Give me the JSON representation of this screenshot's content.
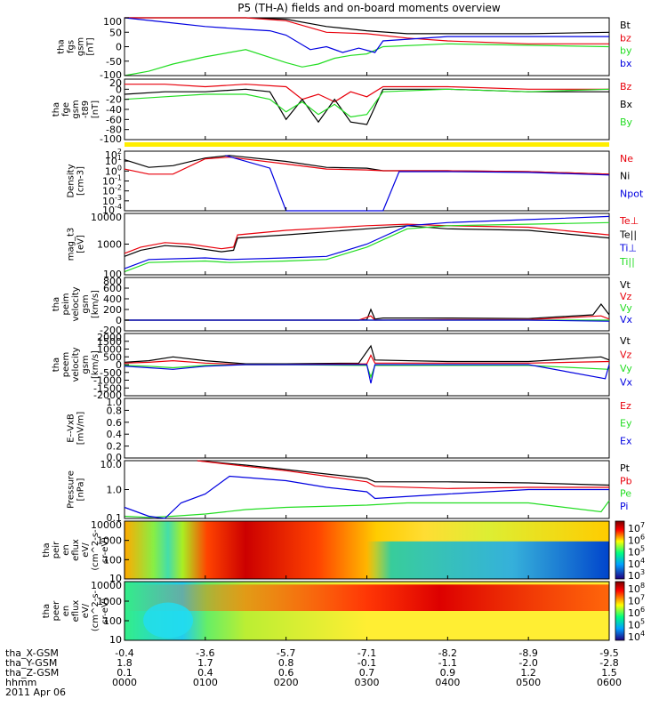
{
  "title": "P5 (TH-A) fields and on-board moments overview",
  "colors": {
    "black": "#000000",
    "red": "#e8000b",
    "green": "#22dd22",
    "blue": "#0000e0",
    "yellow": "#ffee00"
  },
  "chart_data": [
    {
      "type": "line",
      "name": "fgs",
      "ylabel": [
        "tha",
        "fgs",
        "gsm",
        "[nT]"
      ],
      "yticks": [
        "100",
        "50",
        "0",
        "-50",
        "-100"
      ],
      "legend": [
        "Bt",
        "bz",
        "by",
        "bx"
      ],
      "legend_colors": [
        "black",
        "red",
        "green",
        "blue"
      ],
      "ylim": [
        -100,
        100
      ],
      "series": [
        {
          "name": "Bt",
          "color": "black",
          "x": [
            0,
            1,
            1.5,
            2,
            2.5,
            3,
            3.5,
            4,
            5,
            6
          ],
          "y": [
            100,
            100,
            100,
            95,
            70,
            55,
            45,
            45,
            45,
            50
          ]
        },
        {
          "name": "bz",
          "color": "red",
          "x": [
            0,
            1,
            1.5,
            2,
            2.5,
            3,
            3.5,
            4,
            5,
            6
          ],
          "y": [
            100,
            100,
            100,
            90,
            50,
            45,
            30,
            20,
            10,
            10
          ]
        },
        {
          "name": "by",
          "color": "green",
          "x": [
            0,
            0.3,
            0.6,
            1,
            1.5,
            2,
            2.2,
            2.4,
            2.6,
            2.8,
            3,
            3.2,
            4,
            5,
            6
          ],
          "y": [
            -100,
            -85,
            -60,
            -35,
            -10,
            -55,
            -70,
            -60,
            -40,
            -30,
            -25,
            0,
            10,
            5,
            0
          ]
        },
        {
          "name": "bx",
          "color": "blue",
          "x": [
            0,
            0.5,
            1,
            1.5,
            1.8,
            2,
            2.3,
            2.5,
            2.7,
            2.9,
            3.1,
            3.2,
            4,
            5,
            6
          ],
          "y": [
            100,
            85,
            70,
            60,
            55,
            40,
            -10,
            0,
            -20,
            -5,
            -20,
            20,
            35,
            35,
            35
          ]
        }
      ]
    },
    {
      "type": "line",
      "name": "fge",
      "ylabel": [
        "tha",
        "fge",
        "gsm",
        "-t89",
        "[nT]"
      ],
      "yticks": [
        "20",
        "0",
        "-20",
        "-40",
        "-60",
        "-80",
        "-100"
      ],
      "legend": [
        "Bz",
        "Bx",
        "By"
      ],
      "legend_colors": [
        "red",
        "black",
        "green"
      ],
      "ylim": [
        -100,
        20
      ],
      "series": [
        {
          "name": "Bz",
          "color": "red",
          "x": [
            0,
            0.5,
            1,
            1.5,
            2,
            2.2,
            2.4,
            2.6,
            2.8,
            3,
            3.2,
            4,
            5,
            6
          ],
          "y": [
            10,
            10,
            5,
            10,
            5,
            -20,
            -10,
            -25,
            -5,
            -15,
            5,
            5,
            0,
            0
          ]
        },
        {
          "name": "Bx",
          "color": "black",
          "x": [
            0,
            0.5,
            1,
            1.5,
            1.8,
            2,
            2.2,
            2.4,
            2.6,
            2.8,
            3,
            3.2,
            4,
            5,
            6
          ],
          "y": [
            -10,
            -5,
            -5,
            0,
            -5,
            -60,
            -20,
            -65,
            -20,
            -65,
            -70,
            0,
            0,
            -5,
            -5
          ]
        },
        {
          "name": "By",
          "color": "green",
          "x": [
            0,
            0.5,
            1,
            1.5,
            1.8,
            2,
            2.2,
            2.4,
            2.6,
            2.8,
            3,
            3.2,
            4,
            5,
            6
          ],
          "y": [
            -20,
            -15,
            -10,
            -10,
            -20,
            -45,
            -25,
            -50,
            -30,
            -55,
            -50,
            -5,
            0,
            -5,
            0
          ]
        }
      ]
    },
    {
      "type": "bar",
      "name": "flag",
      "values": [
        1
      ]
    },
    {
      "type": "line",
      "name": "density",
      "log": true,
      "ylabel": [
        "Density",
        "[cm-3]"
      ],
      "yticks": [
        "10^2",
        "10^1",
        "10^0",
        "10^-1",
        "10^-2",
        "10^-3",
        "10^-4"
      ],
      "legend": [
        "Ne",
        "Ni",
        "Npot"
      ],
      "legend_colors": [
        "red",
        "black",
        "blue"
      ],
      "ylim": [
        -4.5,
        2.5
      ],
      "series": [
        {
          "name": "Ni",
          "color": "black",
          "x": [
            0,
            0.3,
            0.6,
            1,
            1.3,
            2,
            2.5,
            3,
            3.2,
            4,
            5,
            6
          ],
          "y": [
            1.5,
            0.6,
            0.8,
            1.7,
            2.0,
            1.3,
            0.6,
            0.5,
            0.2,
            0.2,
            0.1,
            -0.2
          ]
        },
        {
          "name": "Ne",
          "color": "red",
          "x": [
            0,
            0.3,
            0.6,
            1,
            1.3,
            2,
            2.5,
            3,
            3.2,
            4,
            5,
            6
          ],
          "y": [
            0.4,
            -0.2,
            -0.2,
            1.6,
            1.8,
            1.0,
            0.4,
            0.3,
            0.2,
            0.2,
            0.1,
            -0.2
          ]
        },
        {
          "name": "Npot",
          "color": "blue",
          "x": [
            1.25,
            1.8,
            2.0,
            3.2,
            3.4,
            4,
            5,
            6
          ],
          "y": [
            2.0,
            0.5,
            -4.5,
            -4.5,
            0.1,
            0.1,
            0.0,
            -0.3
          ]
        }
      ]
    },
    {
      "type": "line",
      "name": "temperature",
      "log": true,
      "ylabel": [
        "mag_t3",
        "[eV]"
      ],
      "yticks": [
        "10000",
        "1000",
        "100"
      ],
      "legend": [
        "Te⊥",
        "Te||",
        "Ti⊥",
        "Ti||"
      ],
      "legend_colors": [
        "red",
        "black",
        "blue",
        "green"
      ],
      "ylim": [
        2,
        4
      ],
      "series": [
        {
          "name": "Te⊥",
          "color": "red",
          "x": [
            0,
            0.2,
            0.5,
            0.8,
            1.2,
            1.35,
            1.4,
            2,
            3,
            3.5,
            4,
            5,
            6
          ],
          "y": [
            2.7,
            2.9,
            3.05,
            3.0,
            2.85,
            2.9,
            3.3,
            3.45,
            3.6,
            3.65,
            3.6,
            3.55,
            3.3
          ]
        },
        {
          "name": "Te||",
          "color": "black",
          "x": [
            0,
            0.2,
            0.5,
            0.8,
            1.2,
            1.35,
            1.4,
            2,
            3,
            3.5,
            4,
            5,
            6
          ],
          "y": [
            2.6,
            2.8,
            2.95,
            2.9,
            2.75,
            2.8,
            3.2,
            3.3,
            3.5,
            3.6,
            3.5,
            3.45,
            3.2
          ]
        },
        {
          "name": "Ti⊥",
          "color": "blue",
          "x": [
            0,
            0.3,
            1,
            1.3,
            2,
            2.5,
            3,
            3.5,
            4,
            5,
            6
          ],
          "y": [
            2.2,
            2.5,
            2.55,
            2.5,
            2.55,
            2.6,
            3.0,
            3.6,
            3.7,
            3.8,
            3.9
          ]
        },
        {
          "name": "Ti||",
          "color": "green",
          "x": [
            0,
            0.3,
            1,
            1.3,
            2,
            2.5,
            3,
            3.5,
            4,
            5,
            6
          ],
          "y": [
            2.1,
            2.4,
            2.45,
            2.4,
            2.45,
            2.5,
            2.9,
            3.5,
            3.6,
            3.65,
            3.7
          ]
        }
      ]
    },
    {
      "type": "line",
      "name": "peim velocity",
      "ylabel": [
        "tha",
        "peim",
        "velocity",
        "gsm",
        "[km/s]"
      ],
      "yticks": [
        "800",
        "600",
        "400",
        "200",
        "0",
        "-200"
      ],
      "legend": [
        "Vt",
        "Vz",
        "Vy",
        "Vx"
      ],
      "legend_colors": [
        "black",
        "red",
        "green",
        "blue"
      ],
      "ylim": [
        -200,
        800
      ],
      "series": [
        {
          "name": "Vt",
          "color": "black",
          "x": [
            0,
            2.9,
            3.0,
            3.05,
            3.1,
            3.2,
            4,
            5,
            5.8,
            5.9,
            6
          ],
          "y": [
            0,
            0,
            10,
            200,
            20,
            40,
            40,
            30,
            100,
            300,
            100
          ]
        },
        {
          "name": "Vz",
          "color": "red",
          "x": [
            0,
            2.9,
            3.05,
            3.1,
            4,
            5,
            5.9,
            6
          ],
          "y": [
            0,
            0,
            80,
            0,
            10,
            10,
            80,
            20
          ]
        },
        {
          "name": "Vy",
          "color": "green",
          "x": [
            0,
            3,
            4,
            5,
            6
          ],
          "y": [
            0,
            0,
            0,
            0,
            0
          ]
        },
        {
          "name": "Vx",
          "color": "blue",
          "x": [
            0,
            3,
            4,
            5,
            6
          ],
          "y": [
            0,
            0,
            0,
            0,
            -20
          ]
        }
      ]
    },
    {
      "type": "line",
      "name": "peem velocity",
      "ylabel": [
        "tha",
        "peem",
        "velocity",
        "gsm",
        "[km/s]"
      ],
      "yticks": [
        "2000",
        "1500",
        "1000",
        "500",
        "0",
        "-500",
        "-1000",
        "-1500",
        "-2000"
      ],
      "legend": [
        "Vt",
        "Vz",
        "Vy",
        "Vx"
      ],
      "legend_colors": [
        "black",
        "red",
        "green",
        "blue"
      ],
      "ylim": [
        -2000,
        2000
      ],
      "series": [
        {
          "name": "Vt",
          "color": "black",
          "x": [
            0,
            0.3,
            0.6,
            1,
            1.5,
            2,
            2.9,
            3.05,
            3.1,
            4,
            5,
            5.9,
            6
          ],
          "y": [
            150,
            250,
            500,
            250,
            50,
            50,
            100,
            1200,
            300,
            200,
            200,
            500,
            300
          ]
        },
        {
          "name": "Vz",
          "color": "red",
          "x": [
            0,
            0.3,
            0.6,
            1,
            1.5,
            2,
            3,
            3.05,
            3.1,
            4,
            5,
            6
          ],
          "y": [
            100,
            150,
            250,
            100,
            0,
            0,
            50,
            600,
            100,
            100,
            100,
            200
          ]
        },
        {
          "name": "Vy",
          "color": "green",
          "x": [
            0,
            0.3,
            0.6,
            1,
            1.5,
            2,
            3,
            3.05,
            3.1,
            4,
            5,
            6
          ],
          "y": [
            -50,
            -100,
            -200,
            -50,
            0,
            0,
            -50,
            -800,
            -50,
            -50,
            -50,
            -300
          ]
        },
        {
          "name": "Vx",
          "color": "blue",
          "x": [
            0,
            0.3,
            0.6,
            1,
            1.5,
            2,
            3,
            3.05,
            3.1,
            4,
            5,
            5.95,
            6
          ],
          "y": [
            -100,
            -200,
            -300,
            -100,
            0,
            0,
            0,
            -1200,
            0,
            0,
            0,
            -900,
            0
          ]
        }
      ]
    },
    {
      "type": "line",
      "name": "E-VxB",
      "ylabel": [
        "E--VxB",
        "[mV/m]"
      ],
      "yticks": [
        "1.0",
        "0.8",
        "0.6",
        "0.4",
        "0.2",
        "0.0"
      ],
      "legend": [
        "Ez",
        "Ey",
        "Ex"
      ],
      "legend_colors": [
        "red",
        "green",
        "blue"
      ],
      "ylim": [
        0,
        1
      ],
      "series": []
    },
    {
      "type": "line",
      "name": "pressure",
      "log": true,
      "ylabel": [
        "Pressure",
        "[nPa]"
      ],
      "yticks": [
        "10.0",
        "1.0",
        "0.1"
      ],
      "legend": [
        "Pt",
        "Pb",
        "Pe",
        "Pi"
      ],
      "legend_colors": [
        "black",
        "red",
        "green",
        "blue"
      ],
      "ylim": [
        -1.3,
        1.3
      ],
      "series": [
        {
          "name": "Pt",
          "color": "black",
          "x": [
            0.9,
            1.5,
            2,
            2.5,
            3,
            3.1,
            4,
            5,
            6
          ],
          "y": [
            1.3,
            1.1,
            0.9,
            0.7,
            0.5,
            0.35,
            0.35,
            0.3,
            0.2
          ]
        },
        {
          "name": "Pb",
          "color": "red",
          "x": [
            0.9,
            1.5,
            2,
            2.5,
            3,
            3.1,
            4,
            5,
            6
          ],
          "y": [
            1.3,
            1.05,
            0.85,
            0.6,
            0.35,
            0.15,
            0.05,
            0.1,
            0.1
          ]
        },
        {
          "name": "Pe",
          "color": "green",
          "x": [
            0,
            0.3,
            0.6,
            1,
            1.5,
            2,
            3,
            3.5,
            4,
            5,
            5.9,
            6
          ],
          "y": [
            -1.2,
            -1.25,
            -1.2,
            -1.1,
            -0.9,
            -0.8,
            -0.7,
            -0.6,
            -0.6,
            -0.6,
            -1.0,
            -0.5
          ]
        },
        {
          "name": "Pi",
          "color": "blue",
          "x": [
            0,
            0.3,
            0.5,
            0.7,
            1,
            1.3,
            2,
            2.5,
            3,
            3.1,
            4,
            5,
            6
          ],
          "y": [
            -0.8,
            -1.2,
            -1.3,
            -0.6,
            -0.2,
            0.6,
            0.4,
            0.1,
            -0.1,
            -0.4,
            -0.2,
            0.0,
            0.0
          ]
        }
      ]
    },
    {
      "type": "heatmap",
      "name": "peir efflux",
      "ylabel": [
        "tha",
        "peir",
        "en",
        "eflux",
        "eV/",
        "(cm^2-s-",
        "sr-eV)"
      ],
      "yticks": [
        "10000",
        "1000",
        "100",
        "10"
      ],
      "cbar_ticks": [
        "10^7",
        "10^6",
        "10^5",
        "10^4",
        "10^3"
      ]
    },
    {
      "type": "heatmap",
      "name": "peer efflux",
      "ylabel": [
        "tha",
        "peer",
        "en",
        "eflux",
        "eV/",
        "(cm^2-s-",
        "sr-eV)"
      ],
      "yticks": [
        "10000",
        "1000",
        "100",
        "10"
      ],
      "cbar_ticks": [
        "10^8",
        "10^7",
        "10^6",
        "10^5",
        "10^4"
      ]
    }
  ],
  "ephemeris": {
    "rows": [
      {
        "label": "tha_X-GSM",
        "values": [
          "-0.4",
          "-3.6",
          "-5.7",
          "-7.1",
          "-8.2",
          "-8.9",
          "-9.5"
        ]
      },
      {
        "label": "tha_Y-GSM",
        "values": [
          "1.8",
          "1.7",
          "0.8",
          "-0.1",
          "-1.1",
          "-2.0",
          "-2.8"
        ]
      },
      {
        "label": "tha_Z-GSM",
        "values": [
          "0.1",
          "0.4",
          "0.6",
          "0.7",
          "0.9",
          "1.2",
          "1.5"
        ]
      },
      {
        "label": "hhmm",
        "values": [
          "0000",
          "0100",
          "0200",
          "0300",
          "0400",
          "0500",
          "0600"
        ]
      }
    ],
    "date": "2011 Apr 06"
  }
}
